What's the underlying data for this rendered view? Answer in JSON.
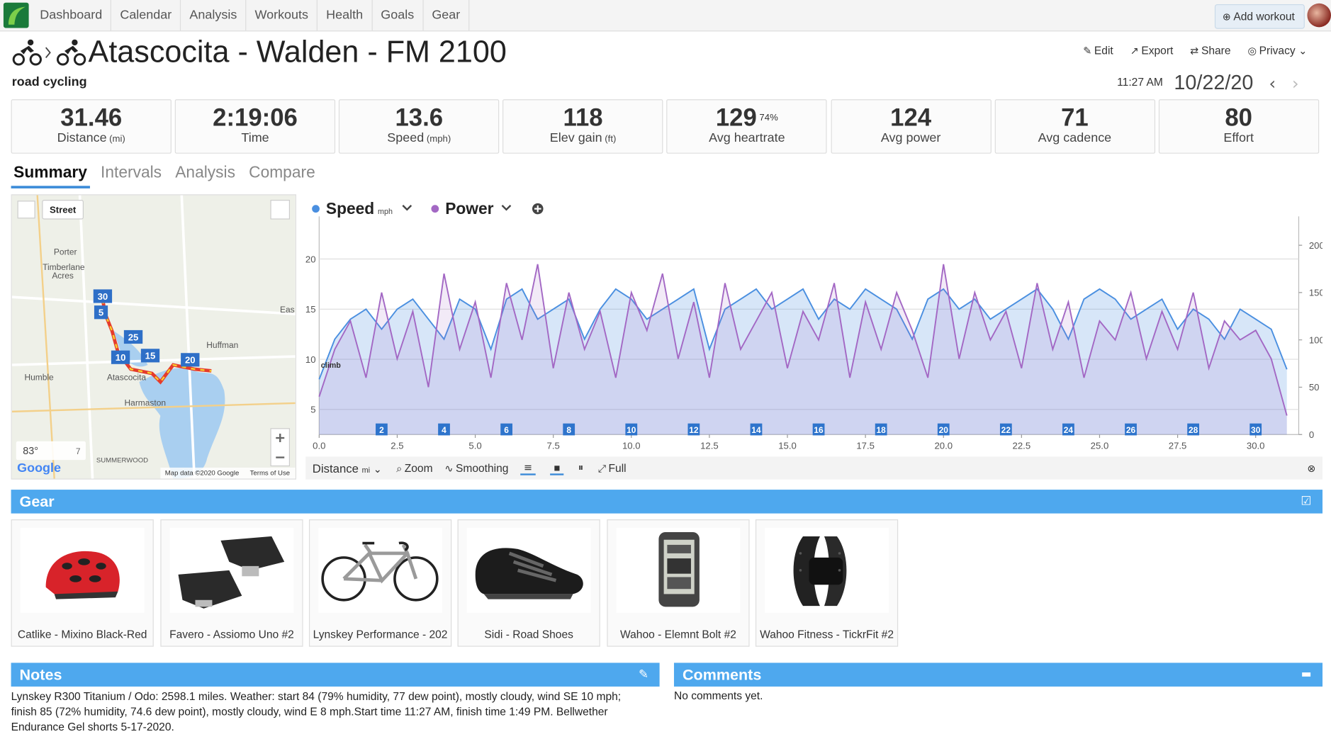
{
  "nav": {
    "items": [
      "Dashboard",
      "Calendar",
      "Analysis",
      "Workouts",
      "Health",
      "Goals",
      "Gear"
    ],
    "add_workout": "Add workout"
  },
  "header": {
    "title": "Atascocita - Walden - FM 2100",
    "sport": "road cycling",
    "time": "11:27 AM",
    "date": "10/22/20",
    "actions": [
      "Edit",
      "Export",
      "Share",
      "Privacy"
    ]
  },
  "stats": [
    {
      "value": 31.46,
      "label": "Distance",
      "unit": "(mi)"
    },
    {
      "value": "2:19:06",
      "label": "Time"
    },
    {
      "value": 13.6,
      "label": "Speed",
      "unit": "(mph)"
    },
    {
      "value": 118,
      "label": "Elev gain",
      "unit": "(ft)"
    },
    {
      "value": 129,
      "extra": "74%",
      "label": "Avg heartrate"
    },
    {
      "value": 124,
      "label": "Avg power"
    },
    {
      "value": 71,
      "label": "Avg cadence"
    },
    {
      "value": 80,
      "label": "Effort"
    }
  ],
  "tabs": [
    "Summary",
    "Intervals",
    "Analysis",
    "Compare"
  ],
  "map": {
    "view": "Street",
    "places": [
      "Porter",
      "Timberlane",
      "Acres",
      "Huffman",
      "Humble",
      "Atascocita",
      "Harmaston",
      "SUMMERWOOD",
      "Eas"
    ],
    "markers": [
      30,
      5,
      25,
      10,
      15,
      20
    ],
    "temperature": "83°",
    "wind": "7",
    "brand": "Google",
    "attribution": "Map data ©2020 Google",
    "terms": "Terms of Use"
  },
  "chart_data": {
    "type": "line",
    "x": [
      0,
      0.5,
      1,
      1.5,
      2,
      2.5,
      3,
      3.5,
      4,
      4.5,
      5,
      5.5,
      6,
      6.5,
      7,
      7.5,
      8,
      8.5,
      9,
      9.5,
      10,
      10.5,
      11,
      11.5,
      12,
      12.5,
      13,
      13.5,
      14,
      14.5,
      15,
      15.5,
      16,
      16.5,
      17,
      17.5,
      18,
      18.5,
      19,
      19.5,
      20,
      20.5,
      21,
      21.5,
      22,
      22.5,
      23,
      23.5,
      24,
      24.5,
      25,
      25.5,
      26,
      26.5,
      27,
      27.5,
      28,
      28.5,
      29,
      29.5,
      30,
      30.5,
      31
    ],
    "series": [
      {
        "name": "Speed",
        "unit": "mph",
        "color": "#4a8fe0",
        "values": [
          8,
          12,
          14,
          15,
          13,
          15,
          16,
          14,
          12,
          16,
          15,
          11,
          16,
          17,
          14,
          15,
          16,
          12,
          15,
          17,
          16,
          14,
          15,
          16,
          17,
          11,
          15,
          16,
          17,
          15,
          16,
          17,
          14,
          16,
          15,
          17,
          16,
          15,
          12,
          16,
          17,
          15,
          16,
          14,
          15,
          16,
          17,
          15,
          12,
          16,
          17,
          16,
          14,
          15,
          16,
          13,
          15,
          14,
          12,
          15,
          14,
          13,
          9
        ]
      },
      {
        "name": "Power",
        "color": "#a368c4",
        "axis": "y2",
        "values": [
          40,
          90,
          120,
          60,
          150,
          80,
          130,
          50,
          170,
          90,
          140,
          60,
          160,
          100,
          180,
          70,
          150,
          90,
          130,
          60,
          150,
          110,
          170,
          80,
          140,
          60,
          160,
          90,
          120,
          150,
          70,
          130,
          100,
          160,
          60,
          140,
          90,
          150,
          110,
          60,
          180,
          80,
          150,
          100,
          130,
          70,
          160,
          90,
          140,
          60,
          120,
          100,
          150,
          80,
          130,
          90,
          150,
          70,
          120,
          100,
          110,
          80,
          20
        ]
      }
    ],
    "xlim": [
      0,
      31.38
    ],
    "xticks": [
      {
        "value": 0,
        "label": "0.0"
      },
      2.5,
      {
        "value": 5,
        "label": "5.0"
      },
      7.5,
      {
        "value": 10,
        "label": "10.0"
      },
      12.5,
      {
        "value": 15,
        "label": "15.0"
      },
      17.5,
      {
        "value": 20,
        "label": "20.0"
      },
      22.5,
      {
        "value": 25,
        "label": "25.0"
      },
      27.5,
      {
        "value": 30,
        "label": "30.0"
      }
    ],
    "ylim": [
      2.5,
      23.4
    ],
    "yticks": [
      5,
      10,
      15,
      20
    ],
    "y2lim": [
      0,
      221.5
    ],
    "y2ticks": [
      0,
      50,
      100,
      150,
      200
    ],
    "grid": true,
    "annotation": "climb",
    "markers": [
      2,
      4,
      6,
      8,
      10,
      12,
      14,
      16,
      18,
      20,
      22,
      24,
      26,
      28,
      30
    ]
  },
  "chart_controls": {
    "x_axis": "Distance",
    "x_unit": "mi",
    "zoom": "Zoom",
    "smoothing": "Smoothing",
    "full": "Full"
  },
  "gear": {
    "title": "Gear",
    "items": [
      "Catlike - Mixino Black-Red",
      "Favero - Assiomo Uno #2",
      "Lynskey Performance - 202",
      "Sidi - Road Shoes",
      "Wahoo - Elemnt Bolt #2",
      "Wahoo Fitness - TickrFit #2"
    ]
  },
  "notes": {
    "title": "Notes",
    "text": "Lynskey R300 Titanium / Odo: 2598.1 miles. Weather: start 84 (79% humidity, 77 dew point), mostly cloudy, wind SE 10 mph; finish 85 (72% humidity, 74.6 dew point), mostly cloudy, wind E 8 mph.Start time 11:27 AM, finish time 1:49 PM. Bellwether Endurance Gel shorts 5-17-2020."
  },
  "comments": {
    "title": "Comments",
    "text": "No comments yet."
  }
}
